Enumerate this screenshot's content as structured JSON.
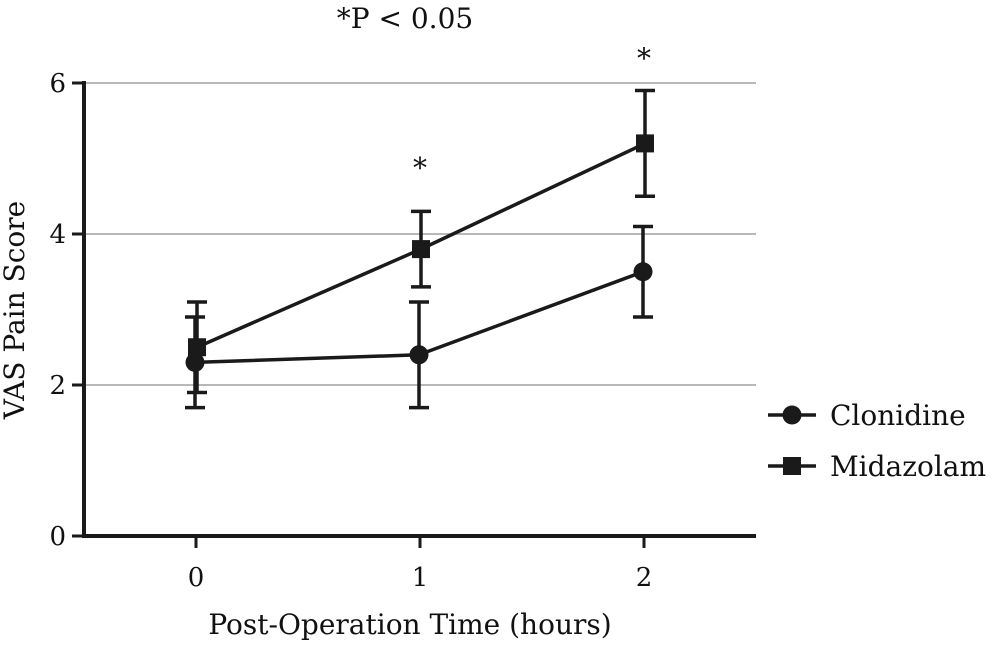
{
  "chart_data": {
    "type": "line",
    "title": "*P < 0.05",
    "xlabel": "Post-Operation Time (hours)",
    "ylabel": "VAS Pain Score",
    "categories": [
      "0",
      "1",
      "2"
    ],
    "x": [
      0,
      1,
      2
    ],
    "xlim": [
      -0.5,
      2.5
    ],
    "ylim": [
      0,
      6
    ],
    "yticks": [
      "0",
      "2",
      "4",
      "6"
    ],
    "grid": true,
    "legend_position": "right",
    "series": [
      {
        "name": "Clonidine",
        "marker": "circle",
        "values": [
          2.3,
          2.4,
          3.5
        ],
        "error_low": [
          1.7,
          1.7,
          2.9
        ],
        "error_high": [
          2.9,
          3.1,
          4.1
        ]
      },
      {
        "name": "Midazolam",
        "marker": "square",
        "values": [
          2.5,
          3.8,
          5.2
        ],
        "error_low": [
          1.9,
          3.3,
          4.5
        ],
        "error_high": [
          3.1,
          4.3,
          5.9
        ]
      }
    ],
    "annotations": [
      {
        "x": 1,
        "y": 4.75,
        "text": "*"
      },
      {
        "x": 2,
        "y": 6.2,
        "text": "*"
      }
    ],
    "colors": {
      "line": "#1a1a1a",
      "grid": "#a0a0a0",
      "axis": "#1a1a1a"
    }
  }
}
